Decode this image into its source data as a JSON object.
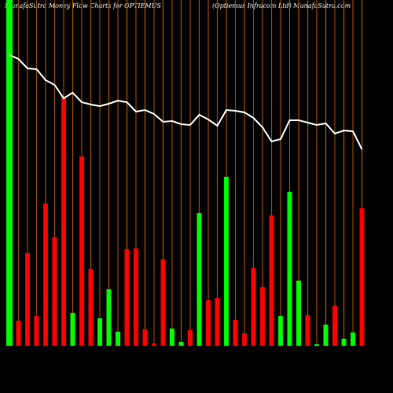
{
  "chart_data": {
    "type": "bar",
    "title": "MunafaSutra  Money Flow  Charts for OPTIEMUS",
    "subtitle": "(Optiemus Infracom Ltd) MunafaSutra.com",
    "values": [
      440,
      32,
      118,
      38,
      181,
      138,
      317,
      42,
      241,
      98,
      35,
      72,
      18,
      123,
      124,
      21,
      3,
      110,
      22,
      5,
      20,
      169,
      58,
      61,
      215,
      33,
      16,
      99,
      75,
      166,
      38,
      196,
      83,
      39,
      2,
      27,
      51,
      9,
      17,
      175
    ],
    "colors": [
      "#00ff00",
      "#ff0000",
      "#ff0000",
      "#ff0000",
      "#ff0000",
      "#ff0000",
      "#ff0000",
      "#00ff00",
      "#ff0000",
      "#ff0000",
      "#00ff00",
      "#00ff00",
      "#00ff00",
      "#ff0000",
      "#ff0000",
      "#ff0000",
      "#ff0000",
      "#ff0000",
      "#00ff00",
      "#00ff00",
      "#ff0000",
      "#00ff00",
      "#ff0000",
      "#ff0000",
      "#00ff00",
      "#ff0000",
      "#ff0000",
      "#ff0000",
      "#ff0000",
      "#ff0000",
      "#00ff00",
      "#00ff00",
      "#00ff00",
      "#ff0000",
      "#00ff00",
      "#00ff00",
      "#ff0000",
      "#00ff00",
      "#00ff00",
      "#ff0000"
    ],
    "line_values": [
      370,
      365,
      353,
      352,
      338,
      332,
      315,
      322,
      310,
      307,
      305,
      308,
      312,
      310,
      298,
      300,
      295,
      285,
      286,
      282,
      281,
      294,
      288,
      280,
      300,
      299,
      297,
      290,
      278,
      260,
      263,
      287,
      287,
      284,
      281,
      283,
      270,
      274,
      273,
      250
    ],
    "line_color": "#ffffff",
    "ylim": [
      0,
      440
    ]
  }
}
